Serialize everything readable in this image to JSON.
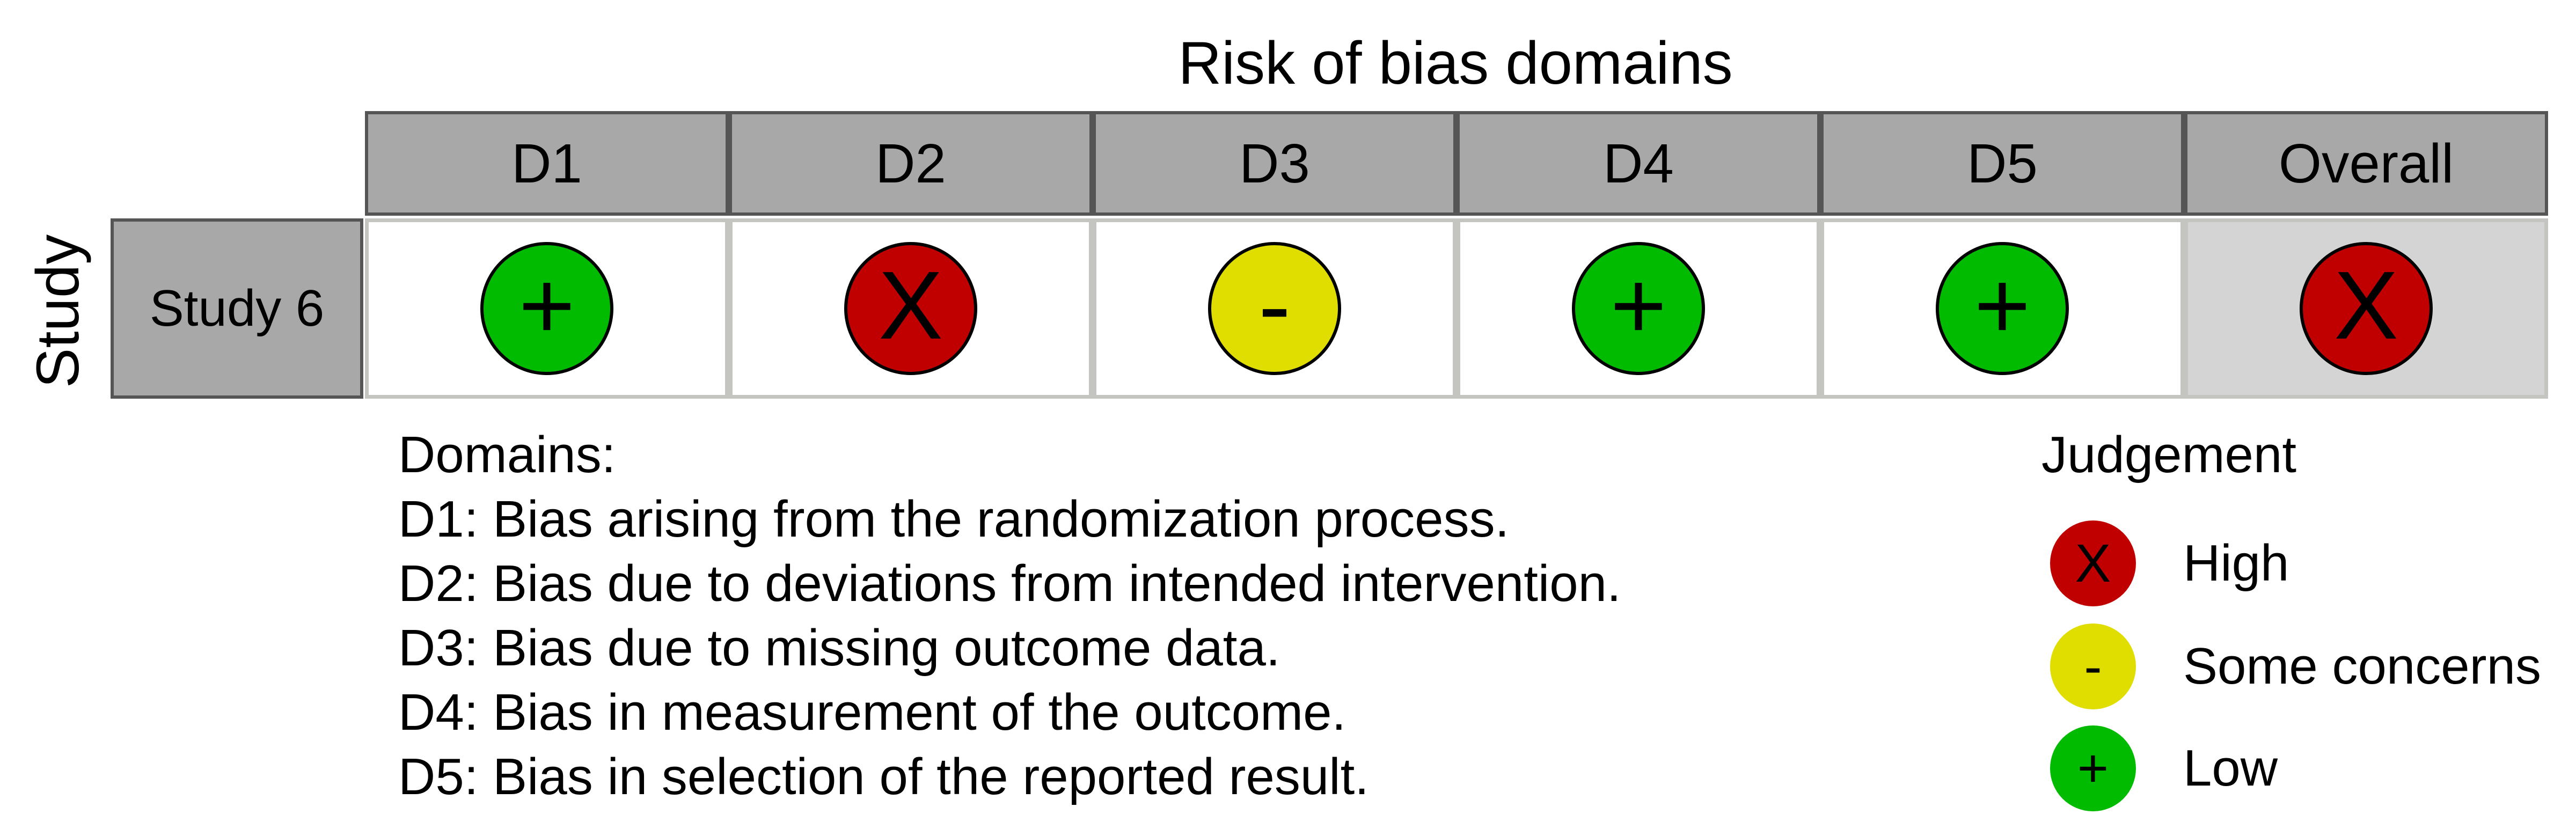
{
  "title": "Risk of bias domains",
  "study_axis_label": "Study",
  "columns": [
    {
      "label": "D1"
    },
    {
      "label": "D2"
    },
    {
      "label": "D3"
    },
    {
      "label": "D4"
    },
    {
      "label": "D5"
    },
    {
      "label": "Overall"
    }
  ],
  "study": {
    "name": "Study 6",
    "judgements": [
      {
        "symbol": "+",
        "level": "low"
      },
      {
        "symbol": "X",
        "level": "high"
      },
      {
        "symbol": "-",
        "level": "some"
      },
      {
        "symbol": "+",
        "level": "low"
      },
      {
        "symbol": "+",
        "level": "low"
      },
      {
        "symbol": "X",
        "level": "high"
      }
    ]
  },
  "domains_legend": {
    "heading": "Domains:",
    "items": [
      "D1: Bias arising from the randomization process.",
      "D2: Bias due to deviations from intended intervention.",
      "D3: Bias due to missing outcome data.",
      "D4: Bias in measurement of the outcome.",
      "D5: Bias in selection of the reported result."
    ]
  },
  "judgement_legend": {
    "title": "Judgement",
    "items": [
      {
        "symbol": "X",
        "label": "High",
        "level": "high"
      },
      {
        "symbol": "-",
        "label": "Some concerns",
        "level": "some"
      },
      {
        "symbol": "+",
        "label": "Low",
        "level": "low"
      }
    ]
  },
  "colors": {
    "high": "#c00000",
    "some": "#e0de00",
    "low": "#00bb00",
    "header_fill": "#a8a8a8",
    "overall_fill": "#d4d4d4"
  }
}
